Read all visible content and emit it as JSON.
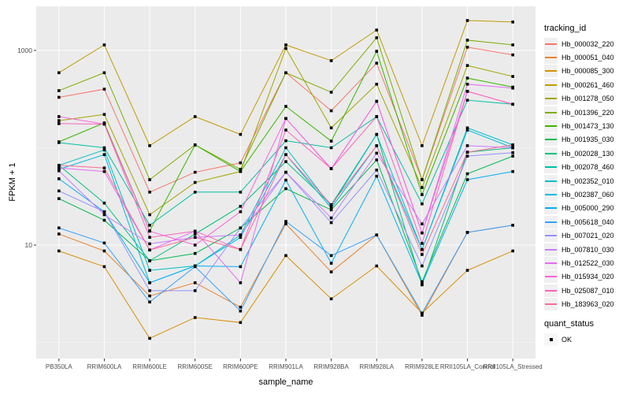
{
  "figure": {
    "background": "#FFFFFF",
    "panel_bg": "#EBEBEB",
    "grid_major_color": "#FFFFFF",
    "grid_minor_color": "#FFFFFF",
    "tick_label_color": "#4D4D4D",
    "tick_mark_color": "#333333",
    "point_color": "#000000",
    "legend_key_bg": "#F0F0F0"
  },
  "chart_data": {
    "type": "line",
    "title": "",
    "xlabel": "sample_name",
    "ylabel": "FPKM + 1",
    "y_scale": "log10",
    "ylim": [
      0.85,
      2840
    ],
    "y_ticks": [
      {
        "value": 10,
        "label": "10"
      },
      {
        "value": 1000,
        "label": "1000"
      }
    ],
    "y_minor_breaks": [
      1,
      100
    ],
    "grid": "major-and-minor",
    "legend_position": "right",
    "categories": [
      "PB350LA",
      "RRIM600LA",
      "RRIM600LE",
      "RRIM600SE",
      "RRIM600PE",
      "RRIM901LA",
      "RRIM928BA",
      "RRIM928LA",
      "RRIM928LE",
      "RRII105LA_Control",
      "RRII105LA_Stressed"
    ],
    "series": [
      {
        "name": "Hb_000032_220",
        "color": "#F8766D",
        "values": [
          330,
          400,
          35,
          56,
          70,
          590,
          240,
          740,
          47,
          1080,
          900
        ]
      },
      {
        "name": "Hb_000051_040",
        "color": "#EA8331",
        "values": [
          13,
          8.7,
          3.0,
          4.1,
          2.3,
          16.5,
          5.3,
          12.7,
          1.9,
          13.5,
          16
        ]
      },
      {
        "name": "Hb_000085_300",
        "color": "#D89000",
        "values": [
          8.7,
          6.0,
          1.1,
          1.8,
          1.6,
          7.8,
          2.8,
          6.1,
          2.0,
          5.5,
          8.7
        ]
      },
      {
        "name": "Hb_000261_460",
        "color": "#C09B00",
        "values": [
          590,
          1140,
          105,
          209,
          137,
          1140,
          785,
          1620,
          105,
          2030,
          1960
        ]
      },
      {
        "name": "Hb_001278_050",
        "color": "#A3A500",
        "values": [
          190,
          220,
          20.5,
          44,
          57,
          1050,
          160,
          450,
          39,
          700,
          540
        ]
      },
      {
        "name": "Hb_001396_220",
        "color": "#7CAE00",
        "values": [
          386,
          590,
          47,
          107,
          60,
          590,
          372,
          1350,
          47,
          1275,
          1140
        ]
      },
      {
        "name": "Hb_001473_130",
        "color": "#39B600",
        "values": [
          115,
          180,
          14,
          107,
          57,
          266,
          117,
          980,
          33,
          520,
          420
        ]
      },
      {
        "name": "Hb_001935_030",
        "color": "#00BB4E",
        "values": [
          30,
          18,
          6.9,
          8.2,
          15,
          38,
          23,
          75,
          4.2,
          54,
          82
        ]
      },
      {
        "name": "Hb_002028_130",
        "color": "#00BF7D",
        "values": [
          66,
          27,
          6.9,
          13,
          25,
          72,
          26,
          137,
          3.9,
          90,
          100
        ]
      },
      {
        "name": "Hb_002078_460",
        "color": "#00C1A3",
        "values": [
          113,
          100,
          16,
          35,
          35,
          118,
          100,
          209,
          26.5,
          308,
          280
        ]
      },
      {
        "name": "Hb_002352_010",
        "color": "#00BFC4",
        "values": [
          66,
          95,
          5.5,
          6.1,
          12.7,
          100,
          25,
          137,
          9,
          160,
          107
        ]
      },
      {
        "name": "Hb_002387_060",
        "color": "#00BAE0",
        "values": [
          60,
          85,
          4.1,
          6.1,
          12,
          85,
          24,
          105,
          9,
          152,
          100
        ]
      },
      {
        "name": "Hb_005000_290",
        "color": "#00B0F6",
        "values": [
          48,
          22,
          4.1,
          6.1,
          6,
          46.5,
          6.5,
          51,
          4,
          47,
          57
        ]
      },
      {
        "name": "Hb_005618_040",
        "color": "#35A2FF",
        "values": [
          15,
          10.5,
          2.6,
          6,
          2.1,
          17.5,
          7.8,
          12.7,
          2.0,
          13.5,
          16
        ]
      },
      {
        "name": "Hb_007021_020",
        "color": "#9590FF",
        "values": [
          36,
          22,
          3.4,
          3.4,
          15,
          56,
          17,
          59,
          6.1,
          82,
          89
        ]
      },
      {
        "name": "Hb_007810_030",
        "color": "#C77CFF",
        "values": [
          58,
          20.5,
          10.3,
          12,
          12.7,
          56,
          19,
          88,
          16.5,
          105,
          100
        ]
      },
      {
        "name": "Hb_012522_030",
        "color": "#E76BF3",
        "values": [
          62,
          57,
          8.9,
          13.9,
          4.1,
          200,
          61,
          300,
          13.3,
          450,
          410
        ]
      },
      {
        "name": "Hb_015934_020",
        "color": "#FA62DB",
        "values": [
          209,
          175,
          13.9,
          10,
          22,
          200,
          61,
          300,
          13.3,
          380,
          280
        ]
      },
      {
        "name": "Hb_025087_010",
        "color": "#FF62BC",
        "values": [
          177,
          175,
          12,
          13.9,
          9,
          152,
          61,
          209,
          10.4,
          380,
          280
        ]
      },
      {
        "name": "Hb_183963_020",
        "color": "#FF6A98",
        "values": [
          66,
          62,
          8.9,
          12,
          9,
          85,
          26,
          105,
          8,
          90,
          107
        ]
      }
    ],
    "legend": {
      "series_title": "tracking_id",
      "status_title": "quant_status",
      "status_items": [
        {
          "label": "OK",
          "marker": "filled-square",
          "color": "#000000"
        }
      ]
    }
  }
}
